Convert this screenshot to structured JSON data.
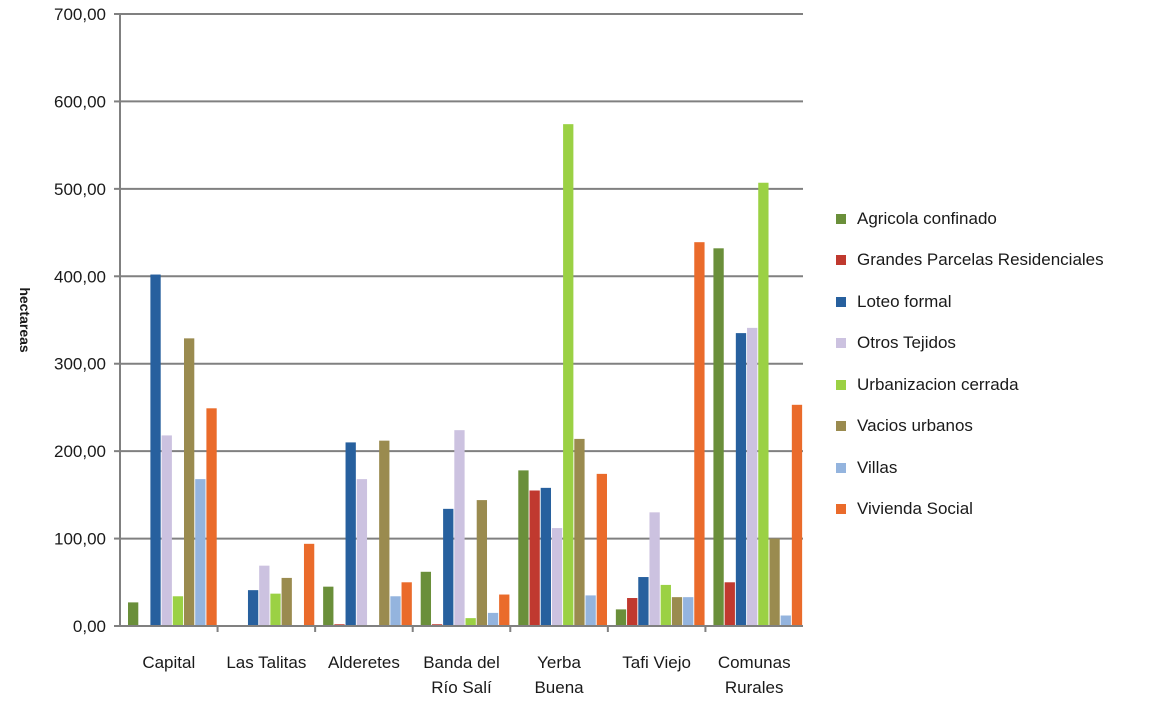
{
  "chart_data": {
    "type": "bar",
    "title": "",
    "xlabel": "",
    "ylabel": "hectareas",
    "ylim": [
      0,
      700
    ],
    "yticks": [
      "0,00",
      "100,00",
      "200,00",
      "300,00",
      "400,00",
      "500,00",
      "600,00",
      "700,00"
    ],
    "grid": true,
    "legend_position": "right",
    "categories": [
      [
        "Capital"
      ],
      [
        "Las Talitas"
      ],
      [
        "Alderetes"
      ],
      [
        "Banda del",
        "Río Salí"
      ],
      [
        "Yerba",
        "Buena"
      ],
      [
        "Tafi Viejo"
      ],
      [
        "Comunas",
        "Rurales"
      ]
    ],
    "series": [
      {
        "name": "Agricola confinado",
        "color": "#6a8f3a",
        "values": [
          27,
          0,
          45,
          62,
          178,
          19,
          432
        ]
      },
      {
        "name": "Grandes Parcelas Residenciales",
        "color": "#c0392f",
        "values": [
          0,
          0,
          2,
          2,
          155,
          32,
          50
        ]
      },
      {
        "name": "Loteo formal",
        "color": "#27609e",
        "values": [
          402,
          41,
          210,
          134,
          158,
          56,
          335
        ]
      },
      {
        "name": "Otros Tejidos",
        "color": "#ccc2e0",
        "values": [
          218,
          69,
          168,
          224,
          112,
          130,
          341
        ]
      },
      {
        "name": "Urbanizacion cerrada",
        "color": "#9bd144",
        "values": [
          34,
          37,
          0,
          9,
          574,
          47,
          507
        ]
      },
      {
        "name": "Vacios urbanos",
        "color": "#9a8b4f",
        "values": [
          329,
          55,
          212,
          144,
          214,
          33,
          100
        ]
      },
      {
        "name": "Villas",
        "color": "#94b4de",
        "values": [
          168,
          0,
          34,
          15,
          35,
          33,
          12
        ]
      },
      {
        "name": "Vivienda Social",
        "color": "#ea6b2b",
        "values": [
          249,
          94,
          50,
          36,
          174,
          439,
          253
        ]
      }
    ]
  }
}
